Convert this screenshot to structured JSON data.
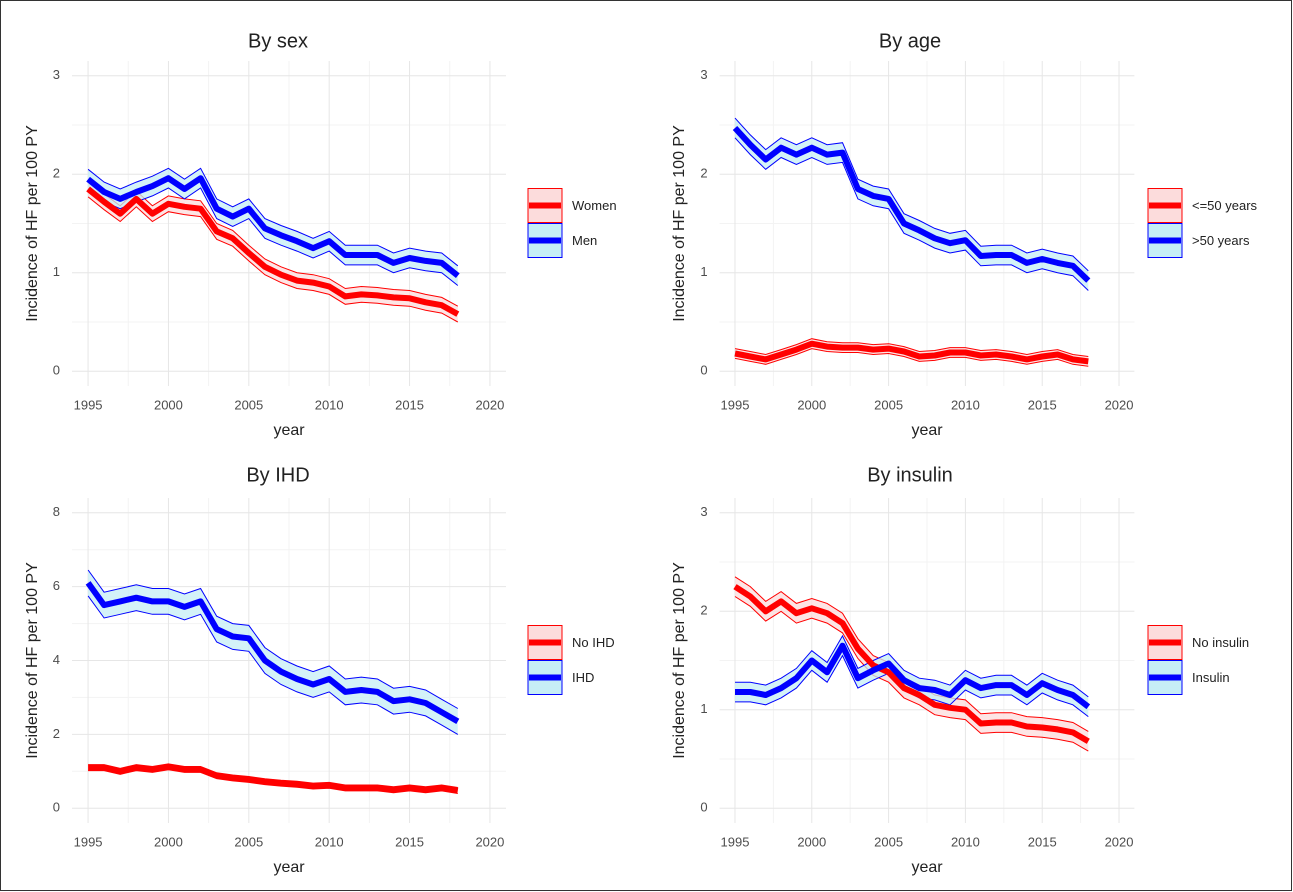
{
  "chart_data": [
    {
      "type": "line",
      "title": "By sex",
      "x_label": "year",
      "y_label": "Incidence of HF per 100 PY",
      "x": [
        1995,
        1996,
        1997,
        1998,
        1999,
        2000,
        2001,
        2002,
        2003,
        2004,
        2005,
        2006,
        2007,
        2008,
        2009,
        2010,
        2011,
        2012,
        2013,
        2014,
        2015,
        2016,
        2017,
        2018
      ],
      "xlim": [
        1994,
        2021
      ],
      "xticks": [
        1995,
        2000,
        2005,
        2010,
        2015,
        2020
      ],
      "ylim": [
        -0.15,
        3.15
      ],
      "yticks": [
        0,
        1,
        2,
        3
      ],
      "grid": true,
      "legend": "right",
      "series": [
        {
          "name": "Women",
          "color": "#ff0000",
          "band_color": "#fcdcdc",
          "values": [
            1.85,
            1.72,
            1.6,
            1.75,
            1.6,
            1.7,
            1.67,
            1.65,
            1.42,
            1.35,
            1.2,
            1.06,
            0.98,
            0.92,
            0.9,
            0.86,
            0.76,
            0.78,
            0.77,
            0.75,
            0.74,
            0.7,
            0.67,
            0.58
          ],
          "lower": [
            1.77,
            1.64,
            1.52,
            1.67,
            1.52,
            1.62,
            1.59,
            1.57,
            1.34,
            1.27,
            1.12,
            0.98,
            0.9,
            0.84,
            0.82,
            0.78,
            0.68,
            0.7,
            0.69,
            0.67,
            0.66,
            0.62,
            0.59,
            0.5
          ],
          "upper": [
            1.93,
            1.8,
            1.68,
            1.83,
            1.68,
            1.78,
            1.75,
            1.73,
            1.5,
            1.43,
            1.28,
            1.14,
            1.06,
            1.0,
            0.98,
            0.94,
            0.84,
            0.86,
            0.85,
            0.83,
            0.82,
            0.78,
            0.75,
            0.66
          ]
        },
        {
          "name": "Men",
          "color": "#0000ff",
          "band_color": "#c6eef6",
          "values": [
            1.95,
            1.82,
            1.75,
            1.82,
            1.88,
            1.96,
            1.85,
            1.96,
            1.65,
            1.57,
            1.65,
            1.45,
            1.38,
            1.32,
            1.25,
            1.32,
            1.18,
            1.18,
            1.18,
            1.1,
            1.15,
            1.12,
            1.1,
            0.97
          ],
          "lower": [
            1.85,
            1.72,
            1.65,
            1.72,
            1.78,
            1.86,
            1.75,
            1.86,
            1.55,
            1.47,
            1.55,
            1.35,
            1.28,
            1.22,
            1.15,
            1.22,
            1.08,
            1.08,
            1.08,
            1.0,
            1.05,
            1.02,
            1.0,
            0.87
          ],
          "upper": [
            2.05,
            1.92,
            1.85,
            1.92,
            1.98,
            2.06,
            1.95,
            2.06,
            1.75,
            1.67,
            1.75,
            1.55,
            1.48,
            1.42,
            1.35,
            1.42,
            1.28,
            1.28,
            1.28,
            1.2,
            1.25,
            1.22,
            1.2,
            1.07
          ]
        }
      ]
    },
    {
      "type": "line",
      "title": "By age",
      "x_label": "year",
      "y_label": "Incidence of HF per 100 PY",
      "x": [
        1995,
        1996,
        1997,
        1998,
        1999,
        2000,
        2001,
        2002,
        2003,
        2004,
        2005,
        2006,
        2007,
        2008,
        2009,
        2010,
        2011,
        2012,
        2013,
        2014,
        2015,
        2016,
        2017,
        2018
      ],
      "xlim": [
        1994,
        2021
      ],
      "xticks": [
        1995,
        2000,
        2005,
        2010,
        2015,
        2020
      ],
      "ylim": [
        -0.15,
        3.15
      ],
      "yticks": [
        0,
        1,
        2,
        3
      ],
      "grid": true,
      "legend": "right",
      "series": [
        {
          "name": "<=50 years",
          "color": "#ff0000",
          "band_color": "#fcdcdc",
          "values": [
            0.18,
            0.15,
            0.12,
            0.17,
            0.22,
            0.28,
            0.25,
            0.24,
            0.24,
            0.22,
            0.23,
            0.2,
            0.15,
            0.16,
            0.19,
            0.19,
            0.16,
            0.17,
            0.15,
            0.12,
            0.15,
            0.17,
            0.12,
            0.1
          ],
          "lower": [
            0.13,
            0.1,
            0.07,
            0.12,
            0.17,
            0.23,
            0.2,
            0.19,
            0.19,
            0.17,
            0.18,
            0.15,
            0.1,
            0.11,
            0.14,
            0.14,
            0.11,
            0.12,
            0.1,
            0.07,
            0.1,
            0.12,
            0.07,
            0.05
          ],
          "upper": [
            0.23,
            0.2,
            0.17,
            0.22,
            0.27,
            0.33,
            0.3,
            0.29,
            0.29,
            0.27,
            0.28,
            0.25,
            0.2,
            0.21,
            0.24,
            0.24,
            0.21,
            0.22,
            0.2,
            0.17,
            0.2,
            0.22,
            0.17,
            0.15
          ]
        },
        {
          "name": ">50 years",
          "color": "#0000ff",
          "band_color": "#c6eef6",
          "values": [
            2.47,
            2.3,
            2.15,
            2.27,
            2.2,
            2.27,
            2.2,
            2.22,
            1.85,
            1.78,
            1.75,
            1.5,
            1.43,
            1.35,
            1.3,
            1.33,
            1.17,
            1.18,
            1.18,
            1.1,
            1.14,
            1.1,
            1.07,
            0.92
          ],
          "lower": [
            2.37,
            2.2,
            2.05,
            2.17,
            2.1,
            2.17,
            2.1,
            2.12,
            1.75,
            1.68,
            1.65,
            1.4,
            1.33,
            1.25,
            1.2,
            1.23,
            1.07,
            1.08,
            1.08,
            1.0,
            1.04,
            1.0,
            0.97,
            0.82
          ],
          "upper": [
            2.57,
            2.4,
            2.25,
            2.37,
            2.3,
            2.37,
            2.3,
            2.32,
            1.95,
            1.88,
            1.85,
            1.6,
            1.53,
            1.45,
            1.4,
            1.43,
            1.27,
            1.28,
            1.28,
            1.2,
            1.24,
            1.2,
            1.17,
            1.02
          ]
        }
      ]
    },
    {
      "type": "line",
      "title": "By IHD",
      "x_label": "year",
      "y_label": "Incidence of HF per 100 PY",
      "x": [
        1995,
        1996,
        1997,
        1998,
        1999,
        2000,
        2001,
        2002,
        2003,
        2004,
        2005,
        2006,
        2007,
        2008,
        2009,
        2010,
        2011,
        2012,
        2013,
        2014,
        2015,
        2016,
        2017,
        2018
      ],
      "xlim": [
        1994,
        2021
      ],
      "xticks": [
        1995,
        2000,
        2005,
        2010,
        2015,
        2020
      ],
      "ylim": [
        -0.4,
        8.4
      ],
      "yticks": [
        0,
        2,
        4,
        6,
        8
      ],
      "grid": true,
      "legend": "right",
      "series": [
        {
          "name": "No IHD",
          "color": "#ff0000",
          "band_color": "#fcdcdc",
          "values": [
            1.1,
            1.1,
            1.0,
            1.1,
            1.05,
            1.12,
            1.05,
            1.05,
            0.88,
            0.82,
            0.78,
            0.72,
            0.68,
            0.65,
            0.6,
            0.62,
            0.55,
            0.55,
            0.55,
            0.5,
            0.55,
            0.5,
            0.55,
            0.48
          ],
          "lower": [
            1.02,
            1.02,
            0.92,
            1.02,
            0.97,
            1.04,
            0.97,
            0.97,
            0.8,
            0.74,
            0.7,
            0.64,
            0.6,
            0.57,
            0.52,
            0.54,
            0.47,
            0.47,
            0.47,
            0.42,
            0.47,
            0.42,
            0.47,
            0.4
          ],
          "upper": [
            1.18,
            1.18,
            1.08,
            1.18,
            1.13,
            1.2,
            1.13,
            1.13,
            0.96,
            0.9,
            0.86,
            0.8,
            0.76,
            0.73,
            0.68,
            0.7,
            0.63,
            0.63,
            0.63,
            0.58,
            0.63,
            0.58,
            0.63,
            0.56
          ]
        },
        {
          "name": "IHD",
          "color": "#0000ff",
          "band_color": "#c6eef6",
          "values": [
            6.1,
            5.5,
            5.6,
            5.7,
            5.6,
            5.6,
            5.45,
            5.6,
            4.85,
            4.65,
            4.6,
            4.0,
            3.7,
            3.5,
            3.35,
            3.5,
            3.15,
            3.2,
            3.15,
            2.9,
            2.95,
            2.85,
            2.6,
            2.35
          ],
          "lower": [
            5.75,
            5.15,
            5.25,
            5.35,
            5.25,
            5.25,
            5.1,
            5.25,
            4.5,
            4.3,
            4.25,
            3.65,
            3.35,
            3.15,
            3.0,
            3.15,
            2.8,
            2.85,
            2.8,
            2.55,
            2.6,
            2.5,
            2.25,
            2.0
          ],
          "upper": [
            6.45,
            5.85,
            5.95,
            6.05,
            5.95,
            5.95,
            5.8,
            5.95,
            5.2,
            5.0,
            4.95,
            4.35,
            4.05,
            3.85,
            3.7,
            3.85,
            3.5,
            3.55,
            3.5,
            3.25,
            3.3,
            3.2,
            2.95,
            2.7
          ]
        }
      ]
    },
    {
      "type": "line",
      "title": "By insulin",
      "x_label": "year",
      "y_label": "Incidence of HF per 100 PY",
      "x": [
        1995,
        1996,
        1997,
        1998,
        1999,
        2000,
        2001,
        2002,
        2003,
        2004,
        2005,
        2006,
        2007,
        2008,
        2009,
        2010,
        2011,
        2012,
        2013,
        2014,
        2015,
        2016,
        2017,
        2018
      ],
      "xlim": [
        1994,
        2021
      ],
      "xticks": [
        1995,
        2000,
        2005,
        2010,
        2015,
        2020
      ],
      "ylim": [
        -0.15,
        3.15
      ],
      "yticks": [
        0,
        1,
        2,
        3
      ],
      "grid": true,
      "legend": "right",
      "series": [
        {
          "name": "No insulin",
          "color": "#ff0000",
          "band_color": "#fcdcdc",
          "values": [
            2.25,
            2.15,
            2.0,
            2.1,
            1.98,
            2.03,
            1.98,
            1.88,
            1.62,
            1.45,
            1.38,
            1.22,
            1.15,
            1.05,
            1.02,
            1.0,
            0.86,
            0.87,
            0.87,
            0.83,
            0.82,
            0.8,
            0.77,
            0.68
          ],
          "lower": [
            2.15,
            2.05,
            1.9,
            2.0,
            1.88,
            1.93,
            1.88,
            1.78,
            1.52,
            1.35,
            1.28,
            1.12,
            1.05,
            0.95,
            0.92,
            0.9,
            0.76,
            0.77,
            0.77,
            0.73,
            0.72,
            0.7,
            0.67,
            0.58
          ],
          "upper": [
            2.35,
            2.25,
            2.1,
            2.2,
            2.08,
            2.13,
            2.08,
            1.98,
            1.72,
            1.55,
            1.48,
            1.32,
            1.25,
            1.15,
            1.12,
            1.1,
            0.96,
            0.97,
            0.97,
            0.93,
            0.92,
            0.9,
            0.87,
            0.78
          ]
        },
        {
          "name": "Insulin",
          "color": "#0000ff",
          "band_color": "#c6eef6",
          "values": [
            1.18,
            1.18,
            1.15,
            1.22,
            1.32,
            1.5,
            1.38,
            1.65,
            1.32,
            1.4,
            1.47,
            1.3,
            1.22,
            1.2,
            1.15,
            1.3,
            1.22,
            1.25,
            1.25,
            1.15,
            1.27,
            1.2,
            1.15,
            1.03
          ],
          "lower": [
            1.08,
            1.08,
            1.05,
            1.12,
            1.22,
            1.4,
            1.28,
            1.55,
            1.22,
            1.3,
            1.37,
            1.2,
            1.12,
            1.1,
            1.05,
            1.2,
            1.12,
            1.15,
            1.15,
            1.05,
            1.17,
            1.1,
            1.05,
            0.93
          ],
          "upper": [
            1.28,
            1.28,
            1.25,
            1.32,
            1.42,
            1.6,
            1.48,
            1.75,
            1.42,
            1.5,
            1.57,
            1.4,
            1.32,
            1.3,
            1.25,
            1.4,
            1.32,
            1.35,
            1.35,
            1.25,
            1.37,
            1.3,
            1.25,
            1.13
          ]
        }
      ]
    }
  ]
}
